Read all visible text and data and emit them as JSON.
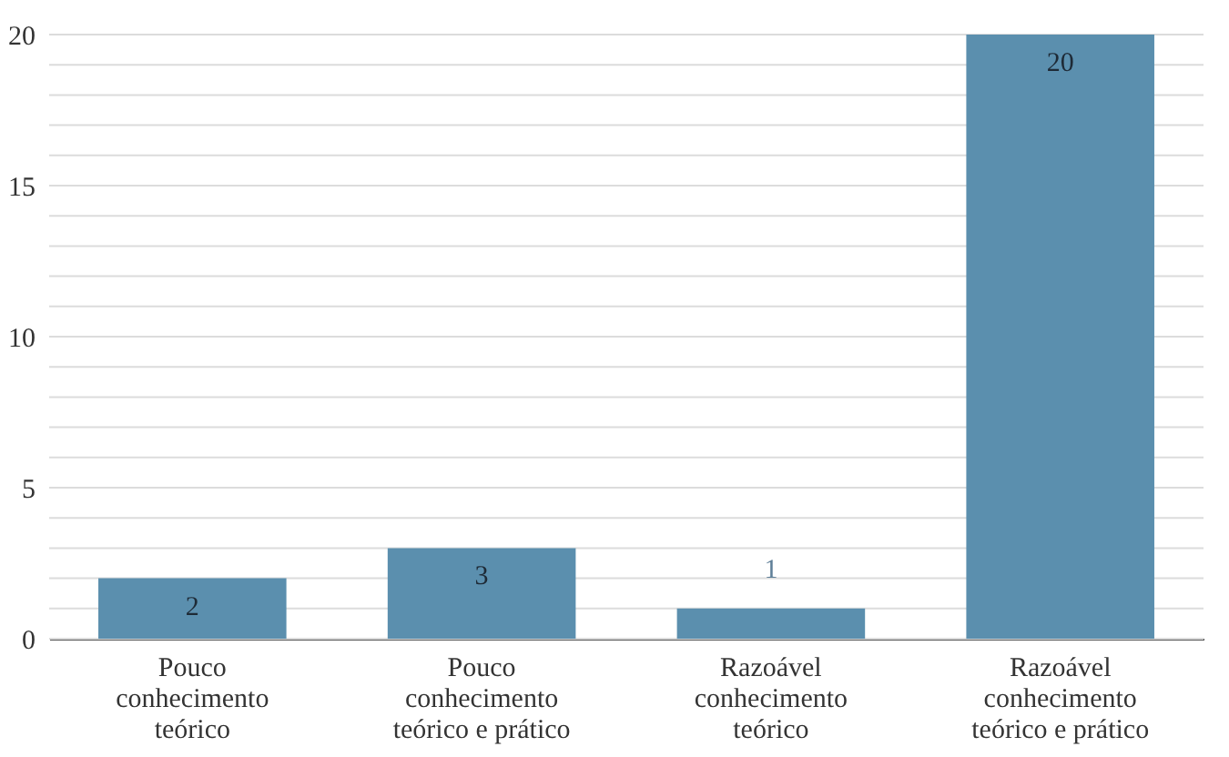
{
  "chart_data": {
    "type": "bar",
    "categories": [
      "Pouco conhecimento teórico",
      "Pouco conhecimento teórico e prático",
      "Razoável conhecimento teórico",
      "Razoável conhecimento teórico e prático"
    ],
    "values": [
      2,
      3,
      1,
      20
    ],
    "color": "#5b8fae",
    "ylim": [
      0,
      20
    ],
    "yticks": [
      0,
      {
        "value": 1,
        "label": null
      },
      {
        "value": 2,
        "label": null
      },
      {
        "value": 3,
        "label": null
      },
      {
        "value": 4,
        "label": null
      },
      5,
      {
        "value": 6,
        "label": null
      },
      {
        "value": 7,
        "label": null
      },
      {
        "value": 8,
        "label": null
      },
      {
        "value": 9,
        "label": null
      },
      10,
      {
        "value": 11,
        "label": null
      },
      {
        "value": 12,
        "label": null
      },
      {
        "value": 13,
        "label": null
      },
      {
        "value": 14,
        "label": null
      },
      15,
      {
        "value": 16,
        "label": null
      },
      {
        "value": 17,
        "label": null
      },
      {
        "value": 18,
        "label": null
      },
      {
        "value": 19,
        "label": null
      },
      20
    ],
    "grid": true,
    "data_labels": true
  }
}
